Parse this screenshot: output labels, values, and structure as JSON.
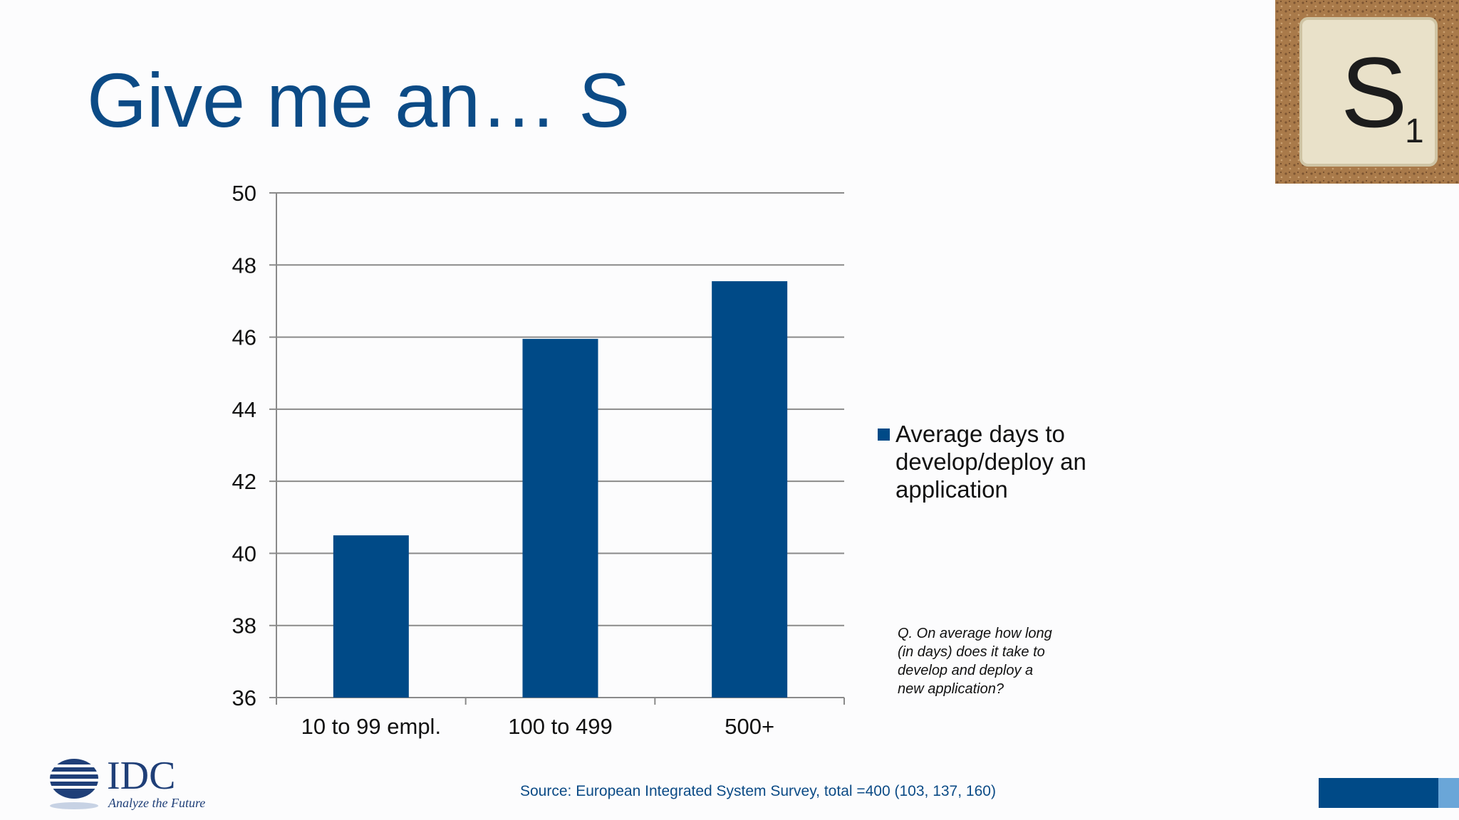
{
  "slide": {
    "title": "Give me an… S",
    "tile_letter": "S",
    "tile_subscript": "1",
    "question": "Q. On average how long (in days) does it take to develop and deploy a new application?",
    "source": "Source: European Integrated System Survey, total =400 (103, 137, 160)"
  },
  "logo": {
    "name": "IDC",
    "tagline": "Analyze the Future"
  },
  "colors": {
    "title": "#0c4b86",
    "bar": "#004a87",
    "grid": "#8a8a8a",
    "accent_light": "#6aa6d8"
  },
  "chart_data": {
    "type": "bar",
    "categories": [
      "10 to 99 empl.",
      "100 to 499",
      "500+"
    ],
    "series": [
      {
        "name": "Average days to develop/deploy an application",
        "values": [
          40.5,
          45.95,
          47.55
        ]
      }
    ],
    "ylim": [
      36,
      50
    ],
    "yticks": [
      50,
      48,
      46,
      44,
      42,
      40,
      38,
      36
    ],
    "grid": true,
    "legend_position": "right"
  }
}
